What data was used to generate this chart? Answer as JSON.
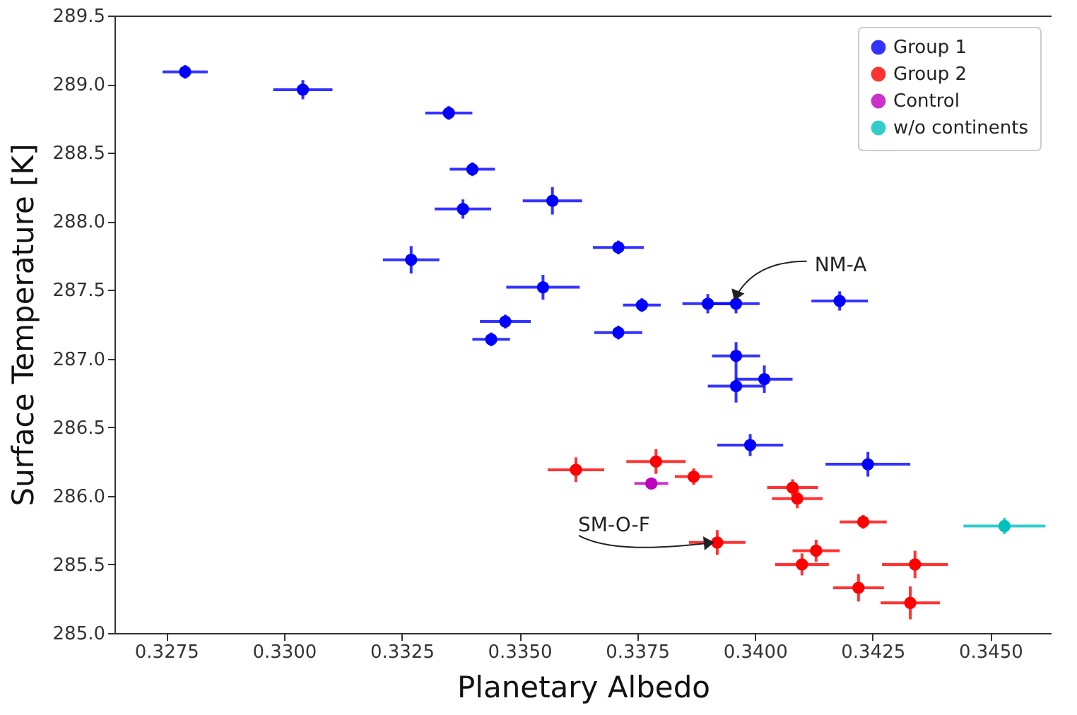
{
  "chart_data": {
    "type": "scatter",
    "xlabel": "Planetary Albedo",
    "ylabel": "Surface Temperature [K]",
    "xlim": [
      0.3264,
      0.3463
    ],
    "ylim": [
      285.0,
      289.5
    ],
    "xticks": [
      0.3275,
      {
        "value": 0.33,
        "label": "0.3300"
      },
      0.3325,
      {
        "value": 0.335,
        "label": "0.3350"
      },
      0.3375,
      {
        "value": 0.34,
        "label": "0.3400"
      },
      0.3425,
      {
        "value": 0.345,
        "label": "0.3450"
      }
    ],
    "yticks": [
      {
        "value": 285,
        "label": "285.0"
      },
      285.5,
      {
        "value": 286,
        "label": "286.0"
      },
      286.5,
      {
        "value": 287,
        "label": "287.0"
      },
      287.5,
      {
        "value": 288,
        "label": "288.0"
      },
      288.5,
      {
        "value": 289,
        "label": "289.0"
      },
      289.5
    ],
    "marker": "circle",
    "legend": "top right",
    "grid": false,
    "series": [
      {
        "name": "Group 1",
        "color": "#0000ff",
        "x": [
          0.3279,
          0.3304,
          0.3335,
          0.334,
          0.3338,
          0.3357,
          0.3327,
          0.3355,
          0.3347,
          0.3344,
          0.3371,
          0.3376,
          0.3371,
          0.339,
          0.3396,
          0.3418,
          0.3396,
          0.3396,
          0.3402,
          0.3399,
          0.3424
        ],
        "values": [
          289.09,
          288.96,
          288.79,
          288.38,
          288.09,
          288.15,
          287.72,
          287.52,
          287.27,
          287.14,
          287.81,
          287.39,
          287.19,
          287.4,
          287.4,
          287.42,
          287.02,
          286.8,
          286.85,
          286.37,
          286.23
        ],
        "errors": [
          0.05,
          0.07,
          0.05,
          0.05,
          0.07,
          0.1,
          0.1,
          0.09,
          0.05,
          0.05,
          0.05,
          0.05,
          0.05,
          0.07,
          0.07,
          0.07,
          0.1,
          0.12,
          0.1,
          0.08,
          0.09
        ],
        "xerrors": [
          0.00048,
          0.00063,
          0.0005,
          0.00048,
          0.0006,
          0.00063,
          0.0006,
          0.00078,
          0.00054,
          0.0004,
          0.00054,
          0.0004,
          0.00051,
          0.00054,
          0.0005,
          0.0006,
          0.00051,
          0.0006,
          0.0006,
          0.0007,
          0.0009
        ]
      },
      {
        "name": "Group 2",
        "color": "#ff0000",
        "x": [
          0.3362,
          0.3379,
          0.3387,
          0.3408,
          0.3409,
          0.3423,
          0.3392,
          0.3413,
          0.341,
          0.3422,
          0.3434,
          0.3433
        ],
        "values": [
          286.19,
          286.25,
          286.14,
          286.06,
          285.98,
          285.81,
          285.66,
          285.6,
          285.5,
          285.33,
          285.5,
          285.22
        ],
        "errors": [
          0.09,
          0.09,
          0.06,
          0.06,
          0.07,
          0.05,
          0.09,
          0.08,
          0.08,
          0.1,
          0.1,
          0.12
        ],
        "xerrors": [
          0.0006,
          0.00063,
          0.0004,
          0.00054,
          0.00054,
          0.0005,
          0.0006,
          0.0005,
          0.00057,
          0.00054,
          0.0007,
          0.00063
        ]
      },
      {
        "name": "Control",
        "color": "#bf00bf",
        "x": [
          0.3378
        ],
        "values": [
          286.09
        ],
        "errors": [
          0.03
        ],
        "xerrors": [
          0.00036
        ]
      },
      {
        "name": "w/o continents",
        "color": "#00bfbf",
        "x": [
          0.3453
        ],
        "values": [
          285.78
        ],
        "errors": [
          0.06
        ],
        "xerrors": [
          0.00087
        ]
      }
    ],
    "annotations": [
      {
        "text": "NM-A",
        "x": 0.3396,
        "y": 287.4
      },
      {
        "text": "SM-O-F",
        "x": 0.3392,
        "y": 285.66
      }
    ]
  }
}
